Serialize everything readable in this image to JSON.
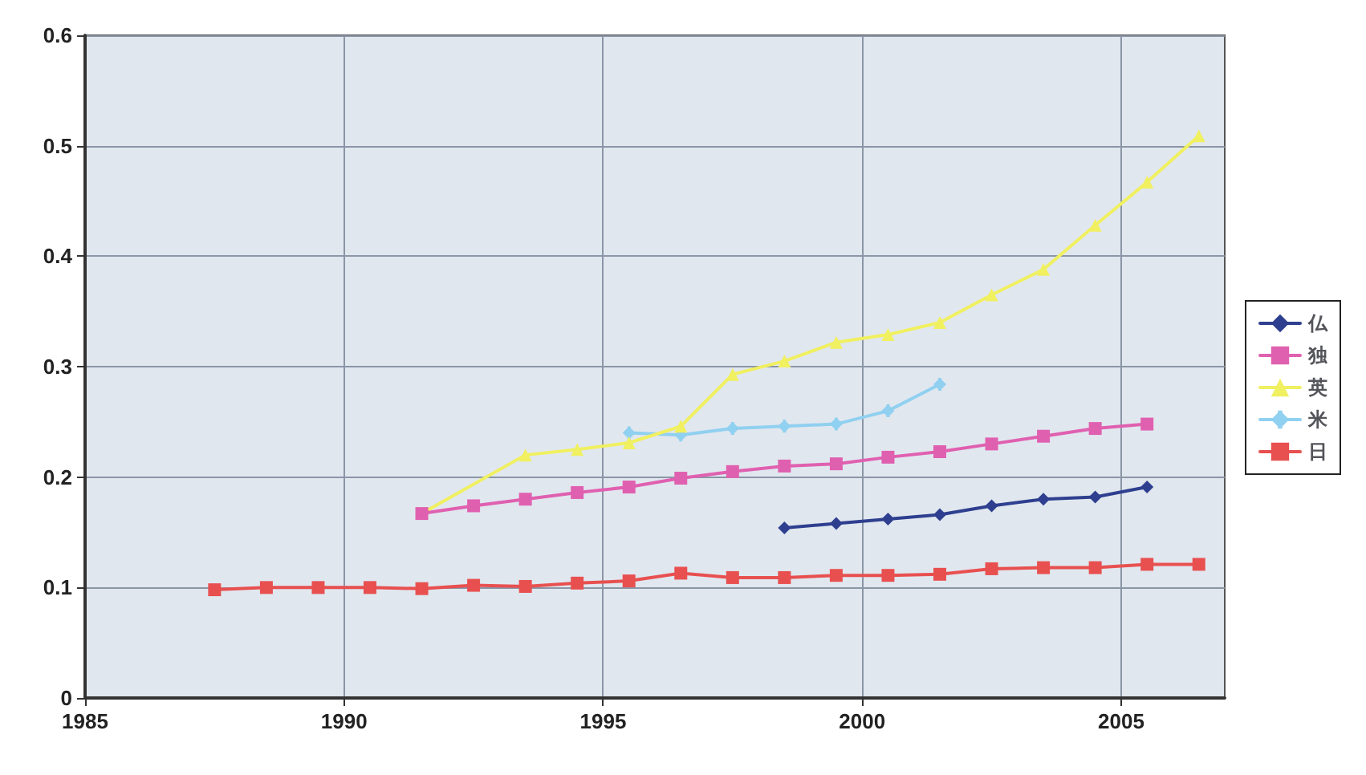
{
  "chart_data": {
    "type": "line",
    "xlim": [
      1985,
      2007
    ],
    "xticks": [
      1985,
      1990,
      1995,
      2000,
      2005
    ],
    "ylim": [
      0,
      0.6
    ],
    "yticks": [
      0,
      0.1,
      0.2,
      0.3,
      0.4,
      0.5,
      0.6
    ],
    "grid": true,
    "legend": "right",
    "series": [
      {
        "name": "仏",
        "color": "#2e3f8f",
        "marker": "diamond",
        "x": [
          1998.5,
          1999.5,
          2000.5,
          2001.5,
          2002.5,
          2003.5,
          2004.5,
          2005.5
        ],
        "values": [
          0.154,
          0.158,
          0.162,
          0.166,
          0.174,
          0.18,
          0.182,
          0.191
        ]
      },
      {
        "name": "独",
        "color": "#e060b0",
        "marker": "square",
        "x": [
          1991.5,
          1992.5,
          1993.5,
          1994.5,
          1995.5,
          1996.5,
          1997.5,
          1998.5,
          1999.5,
          2000.5,
          2001.5,
          2002.5,
          2003.5,
          2004.5,
          2005.5
        ],
        "values": [
          0.167,
          0.174,
          0.18,
          0.186,
          0.191,
          0.199,
          0.205,
          0.21,
          0.212,
          0.218,
          0.223,
          0.23,
          0.237,
          0.244,
          0.248
        ]
      },
      {
        "name": "英",
        "color": "#f0f060",
        "marker": "triangle",
        "x": [
          1991.5,
          1993.5,
          1994.5,
          1995.5,
          1996.5,
          1997.5,
          1998.5,
          1999.5,
          2000.5,
          2001.5,
          2002.5,
          2003.5,
          2004.5,
          2005.5,
          2006.5
        ],
        "values": [
          0.167,
          0.22,
          0.225,
          0.231,
          0.246,
          0.293,
          0.305,
          0.322,
          0.329,
          0.34,
          0.365,
          0.388,
          0.428,
          0.467,
          0.509
        ]
      },
      {
        "name": "米",
        "color": "#90d0f0",
        "marker": "cross",
        "x": [
          1995.5,
          1996.5,
          1997.5,
          1998.5,
          1999.5,
          2000.5,
          2001.5
        ],
        "values": [
          0.24,
          0.238,
          0.244,
          0.246,
          0.248,
          0.26,
          0.284
        ]
      },
      {
        "name": "日",
        "color": "#e85050",
        "marker": "square",
        "x": [
          1987.5,
          1988.5,
          1989.5,
          1990.5,
          1991.5,
          1992.5,
          1993.5,
          1994.5,
          1995.5,
          1996.5,
          1997.5,
          1998.5,
          1999.5,
          2000.5,
          2001.5,
          2002.5,
          2003.5,
          2004.5,
          2005.5,
          2006.5
        ],
        "values": [
          0.098,
          0.1,
          0.1,
          0.1,
          0.099,
          0.102,
          0.101,
          0.104,
          0.106,
          0.113,
          0.109,
          0.109,
          0.111,
          0.111,
          0.112,
          0.117,
          0.118,
          0.118,
          0.121,
          0.121
        ]
      }
    ]
  }
}
